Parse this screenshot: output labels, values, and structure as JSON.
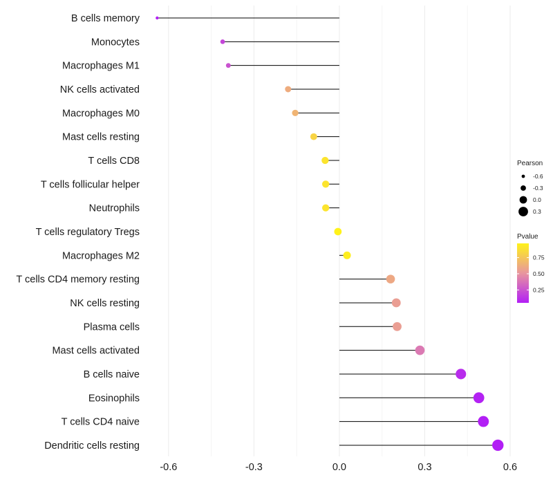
{
  "chart_data": {
    "type": "lollipop",
    "title": "",
    "xlabel": "",
    "ylabel": "",
    "xlim": [
      -0.67,
      0.6
    ],
    "x_ticks": [
      -0.6,
      -0.3,
      0.0,
      0.3,
      0.6
    ],
    "x_tick_labels": [
      "-0.6",
      "-0.3",
      "0.0",
      "0.3",
      "0.6"
    ],
    "grid": true,
    "categories": [
      "B cells memory",
      "Monocytes",
      "Macrophages M1",
      "NK cells activated",
      "Macrophages M0",
      "Mast cells resting",
      "T cells CD8",
      "T cells follicular helper",
      "Neutrophils",
      "T cells regulatory  Tregs ",
      "Macrophages M2",
      "T cells CD4 memory resting",
      "NK cells resting",
      "Plasma cells",
      "Mast cells activated",
      "B cells naive",
      "Eosinophils",
      "T cells CD4 naive",
      "Dendritic cells resting"
    ],
    "pearson": [
      -0.64,
      -0.41,
      -0.39,
      -0.18,
      -0.155,
      -0.09,
      -0.05,
      -0.048,
      -0.048,
      -0.005,
      0.027,
      0.18,
      0.2,
      0.203,
      0.283,
      0.427,
      0.49,
      0.506,
      0.557
    ],
    "pvalue": [
      0.02,
      0.2,
      0.25,
      0.62,
      0.66,
      0.82,
      0.9,
      0.9,
      0.9,
      0.97,
      0.95,
      0.6,
      0.55,
      0.55,
      0.4,
      0.1,
      0.06,
      0.05,
      0.02
    ],
    "legend_size": {
      "title": "Pearson",
      "values": [
        -0.6,
        -0.3,
        0.0,
        0.3
      ],
      "labels": [
        "-0.6",
        "-0.3",
        "0.0",
        "0.3"
      ]
    },
    "legend_color": {
      "title": "Pvalue",
      "range": [
        0.05,
        0.97
      ],
      "breaks": [
        0.75,
        0.5,
        0.25
      ],
      "labels": [
        "0.75",
        "0.50",
        "0.25"
      ],
      "color_low": "#b21ff5",
      "color_mid": "#e8969e",
      "color_high": "#fff21a"
    },
    "legend_position": "right"
  }
}
